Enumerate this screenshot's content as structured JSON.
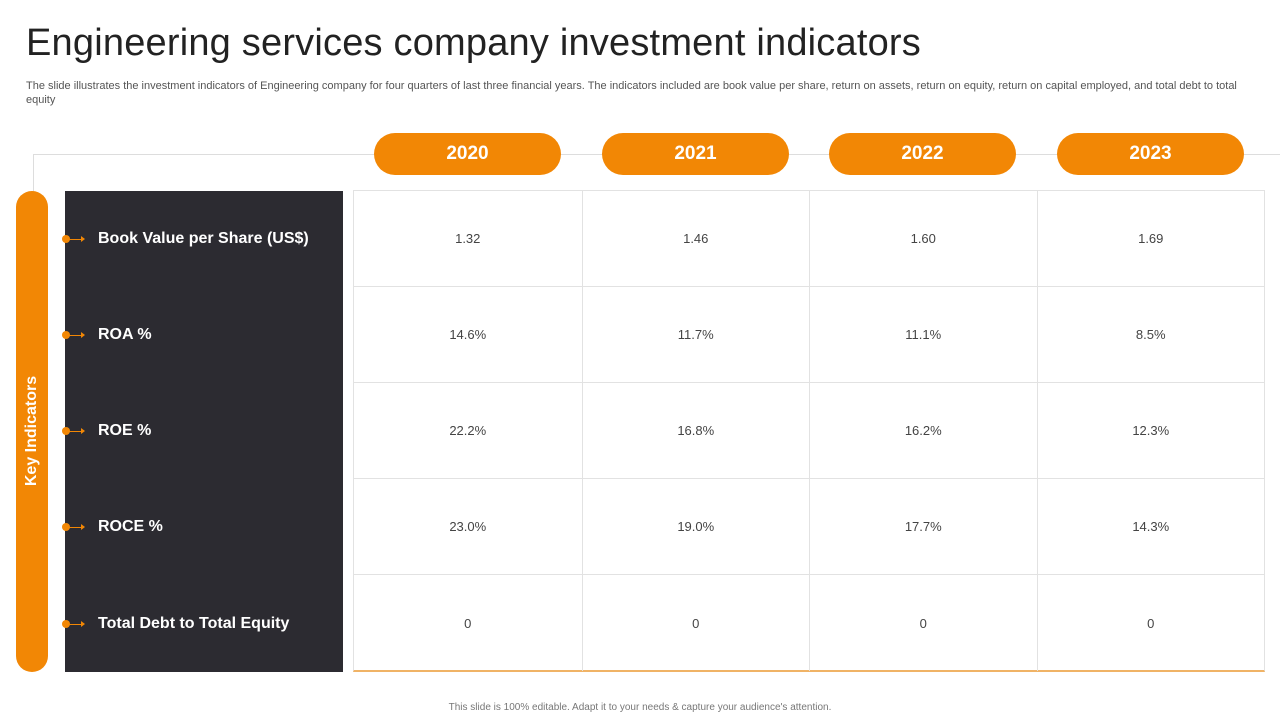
{
  "slide": {
    "title": "Engineering services company investment indicators",
    "subtitle": "The slide illustrates the investment indicators of Engineering company for four quarters of last three financial years. The indicators included are book value per share, return on assets, return on equity, return on capital employed, and total debt to total equity",
    "key_label": "Key Indicators",
    "footer": "This slide is 100% editable.  Adapt it to your needs & capture your audience's attention."
  },
  "colors": {
    "accent": "#f28705",
    "panel": "#2c2b31",
    "grid_line": "#e2e2e2"
  },
  "years": [
    "2020",
    "2021",
    "2022",
    "2023"
  ],
  "indicators": [
    {
      "label": "Book Value per Share (US$)",
      "values": [
        "1.32",
        "1.46",
        "1.60",
        "1.69"
      ]
    },
    {
      "label": "ROA %",
      "values": [
        "14.6%",
        "11.7%",
        "11.1%",
        "8.5%"
      ]
    },
    {
      "label": "ROE %",
      "values": [
        "22.2%",
        "16.8%",
        "16.2%",
        "12.3%"
      ]
    },
    {
      "label": "ROCE %",
      "values": [
        "23.0%",
        "19.0%",
        "17.7%",
        "14.3%"
      ]
    },
    {
      "label": "Total Debt to Total Equity",
      "values": [
        "0",
        "0",
        "0",
        "0"
      ]
    }
  ]
}
